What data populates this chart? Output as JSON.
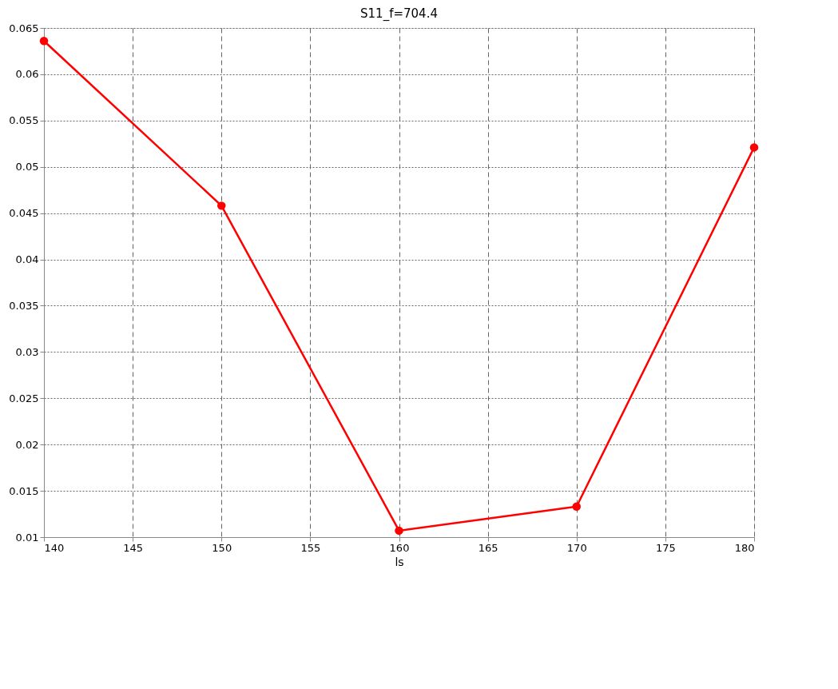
{
  "chart_data": {
    "type": "line",
    "title": "S11_f=704.4",
    "xlabel": "ls",
    "x": [
      140,
      150,
      160,
      170,
      180
    ],
    "series": [
      {
        "color": "#ff0000",
        "values": [
          0.0636,
          0.0458,
          0.0107,
          0.0133,
          0.0521
        ]
      }
    ],
    "xlim": [
      140,
      180
    ],
    "xticks": [
      140,
      145,
      150,
      155,
      160,
      165,
      170,
      175,
      180
    ],
    "ylim": [
      0.01,
      0.065
    ],
    "yticks": [
      0.01,
      0.015,
      0.02,
      0.025,
      0.03,
      0.035,
      0.04,
      0.045,
      0.05,
      0.055,
      0.06,
      0.065
    ],
    "grid": true,
    "marker": "circle",
    "line_style": "solid"
  }
}
